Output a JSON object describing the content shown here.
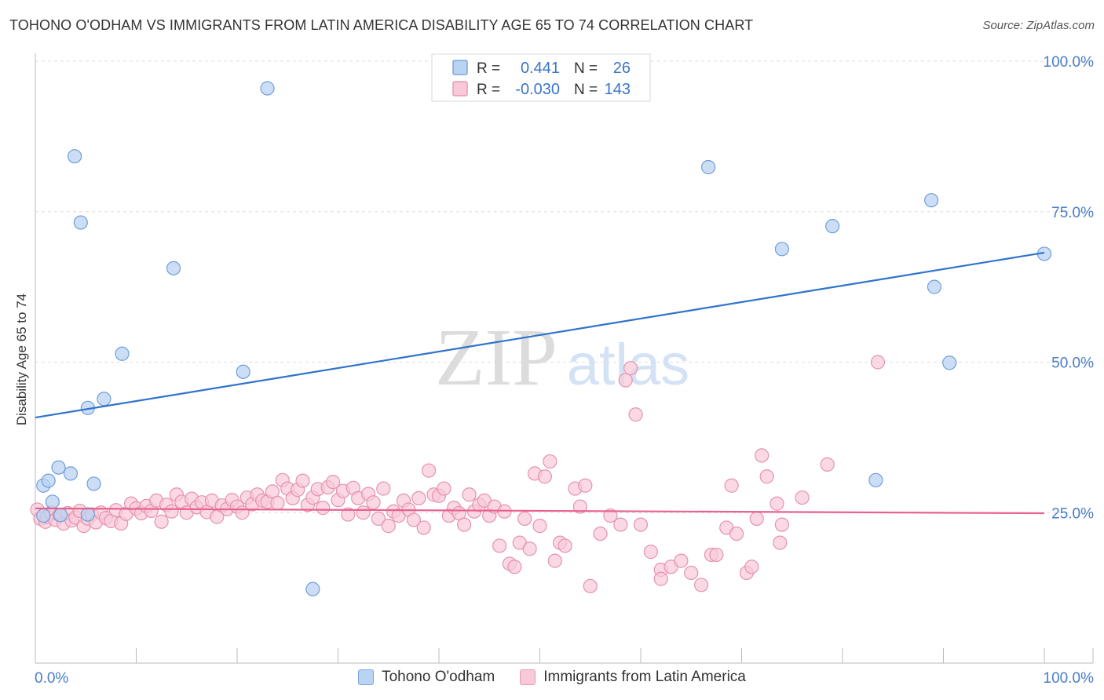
{
  "title": "TOHONO O'ODHAM VS IMMIGRANTS FROM LATIN AMERICA DISABILITY AGE 65 TO 74 CORRELATION CHART",
  "source": "Source: ZipAtlas.com",
  "watermark": {
    "zip": "ZIP",
    "atlas": "atlas"
  },
  "colors": {
    "blue_fill": "#b9d3f3",
    "blue_stroke": "#6f9fd8",
    "blue_line": "#2f73cc",
    "pink_fill": "#f8c9d8",
    "pink_stroke": "#e592b0",
    "pink_line": "#e8628f",
    "axis_label": "#4a7dc9",
    "grid": "#dddddd"
  },
  "legend_top": {
    "r_label": "R =",
    "n_label": "N =",
    "series1": {
      "r": "0.441",
      "n": "26"
    },
    "series2": {
      "r": "-0.030",
      "n": "143"
    }
  },
  "legend_bottom": [
    "Tohono O'odham",
    "Immigrants from Latin America"
  ],
  "chart_data": {
    "type": "scatter",
    "title": "TOHONO O'ODHAM VS IMMIGRANTS FROM LATIN AMERICA DISABILITY AGE 65 TO 74 CORRELATION CHART",
    "xlabel": "",
    "ylabel": "Disability Age 65 to 74",
    "xlim": [
      0,
      100
    ],
    "ylim": [
      0,
      100
    ],
    "x_tick_labels": [
      "0.0%",
      "100.0%"
    ],
    "y_tick_labels": [
      "25.0%",
      "50.0%",
      "75.0%",
      "100.0%"
    ],
    "y_ticks": [
      25,
      50,
      75,
      100
    ],
    "series": [
      {
        "name": "Tohono O'odham",
        "r": 0.441,
        "n": 26,
        "trend": {
          "x": [
            0,
            100
          ],
          "y": [
            40.8,
            68.2
          ]
        },
        "points": [
          [
            0.8,
            24.5
          ],
          [
            0.8,
            29.5
          ],
          [
            1.3,
            30.3
          ],
          [
            1.7,
            26.8
          ],
          [
            2.3,
            32.5
          ],
          [
            2.5,
            24.6
          ],
          [
            3.5,
            31.5
          ],
          [
            3.9,
            84.2
          ],
          [
            4.5,
            73.2
          ],
          [
            5.2,
            42.4
          ],
          [
            5.2,
            24.7
          ],
          [
            5.8,
            29.8
          ],
          [
            6.8,
            43.9
          ],
          [
            8.6,
            51.4
          ],
          [
            13.7,
            65.6
          ],
          [
            20.6,
            48.4
          ],
          [
            23.0,
            95.5
          ],
          [
            27.5,
            12.3
          ],
          [
            66.7,
            82.4
          ],
          [
            74.0,
            68.8
          ],
          [
            79.0,
            72.6
          ],
          [
            83.3,
            30.4
          ],
          [
            88.8,
            76.9
          ],
          [
            89.1,
            62.5
          ],
          [
            90.6,
            49.9
          ],
          [
            100.0,
            68.0
          ]
        ]
      },
      {
        "name": "Immigrants from Latin America",
        "r": -0.03,
        "n": 143,
        "trend": {
          "x": [
            0,
            100
          ],
          "y": [
            25.7,
            24.9
          ]
        },
        "points": [
          [
            0.2,
            25.5
          ],
          [
            0.5,
            24.0
          ],
          [
            1.0,
            23.5
          ],
          [
            1.2,
            24.3
          ],
          [
            1.6,
            25.0
          ],
          [
            2.0,
            23.8
          ],
          [
            2.4,
            24.6
          ],
          [
            2.8,
            23.2
          ],
          [
            3.2,
            24.9
          ],
          [
            3.6,
            23.7
          ],
          [
            4.0,
            24.2
          ],
          [
            4.4,
            25.3
          ],
          [
            4.8,
            22.8
          ],
          [
            5.2,
            24.0
          ],
          [
            5.6,
            24.7
          ],
          [
            6.0,
            23.4
          ],
          [
            6.5,
            25.0
          ],
          [
            7.0,
            24.1
          ],
          [
            7.5,
            23.6
          ],
          [
            8.0,
            25.4
          ],
          [
            8.5,
            23.2
          ],
          [
            9.0,
            24.8
          ],
          [
            9.5,
            26.5
          ],
          [
            10.0,
            25.7
          ],
          [
            10.5,
            24.9
          ],
          [
            11.0,
            26.1
          ],
          [
            11.5,
            25.3
          ],
          [
            12.0,
            27.0
          ],
          [
            12.5,
            23.5
          ],
          [
            13.0,
            26.3
          ],
          [
            13.5,
            25.2
          ],
          [
            14.0,
            28.0
          ],
          [
            14.5,
            26.8
          ],
          [
            15.0,
            25.0
          ],
          [
            15.5,
            27.3
          ],
          [
            16.0,
            25.9
          ],
          [
            16.5,
            26.7
          ],
          [
            17.0,
            25.1
          ],
          [
            17.5,
            27.0
          ],
          [
            18.0,
            24.3
          ],
          [
            18.5,
            26.2
          ],
          [
            19.0,
            25.6
          ],
          [
            19.5,
            27.1
          ],
          [
            20.0,
            26.0
          ],
          [
            20.5,
            25.0
          ],
          [
            21.0,
            27.5
          ],
          [
            21.5,
            26.4
          ],
          [
            22.0,
            28.0
          ],
          [
            22.5,
            27.0
          ],
          [
            23.0,
            26.8
          ],
          [
            23.5,
            28.5
          ],
          [
            24.0,
            26.6
          ],
          [
            24.5,
            30.4
          ],
          [
            25.0,
            29.0
          ],
          [
            25.5,
            27.4
          ],
          [
            26.0,
            28.8
          ],
          [
            26.5,
            30.3
          ],
          [
            27.0,
            26.3
          ],
          [
            27.5,
            27.5
          ],
          [
            28.0,
            28.9
          ],
          [
            28.5,
            25.8
          ],
          [
            29.0,
            29.2
          ],
          [
            29.5,
            30.1
          ],
          [
            30.0,
            27.1
          ],
          [
            30.5,
            28.6
          ],
          [
            31.0,
            24.7
          ],
          [
            31.5,
            29.1
          ],
          [
            32.0,
            27.4
          ],
          [
            32.5,
            25.0
          ],
          [
            33.0,
            28.1
          ],
          [
            33.5,
            26.7
          ],
          [
            34.0,
            24.0
          ],
          [
            34.5,
            29.0
          ],
          [
            35.0,
            22.8
          ],
          [
            35.5,
            25.2
          ],
          [
            36.0,
            24.5
          ],
          [
            36.5,
            27.0
          ],
          [
            37.0,
            25.5
          ],
          [
            37.5,
            23.8
          ],
          [
            38.0,
            27.4
          ],
          [
            38.5,
            22.5
          ],
          [
            39.0,
            32.0
          ],
          [
            39.5,
            28.0
          ],
          [
            40.0,
            27.8
          ],
          [
            40.5,
            29.0
          ],
          [
            41.0,
            24.5
          ],
          [
            41.5,
            25.8
          ],
          [
            42.0,
            24.9
          ],
          [
            42.5,
            23.0
          ],
          [
            43.0,
            28.0
          ],
          [
            43.5,
            25.2
          ],
          [
            44.0,
            26.3
          ],
          [
            44.5,
            27.0
          ],
          [
            45.0,
            24.5
          ],
          [
            45.5,
            26.0
          ],
          [
            46.0,
            19.5
          ],
          [
            46.5,
            25.2
          ],
          [
            47.0,
            16.5
          ],
          [
            47.5,
            16.0
          ],
          [
            48.0,
            20.0
          ],
          [
            48.5,
            24.0
          ],
          [
            49.0,
            19.0
          ],
          [
            49.5,
            31.5
          ],
          [
            50.0,
            22.8
          ],
          [
            50.5,
            31.0
          ],
          [
            51.0,
            33.5
          ],
          [
            51.5,
            17.0
          ],
          [
            52.0,
            20.0
          ],
          [
            52.5,
            19.5
          ],
          [
            53.5,
            29.0
          ],
          [
            54.0,
            26.0
          ],
          [
            54.5,
            29.5
          ],
          [
            55.0,
            12.8
          ],
          [
            56.0,
            21.5
          ],
          [
            57.0,
            24.5
          ],
          [
            58.0,
            23.0
          ],
          [
            58.5,
            47.0
          ],
          [
            59.0,
            49.0
          ],
          [
            59.5,
            41.3
          ],
          [
            60.0,
            23.0
          ],
          [
            61.0,
            18.5
          ],
          [
            62.0,
            15.5
          ],
          [
            62.0,
            14.0
          ],
          [
            63.0,
            16.0
          ],
          [
            64.0,
            17.0
          ],
          [
            65.0,
            15.0
          ],
          [
            66.0,
            13.0
          ],
          [
            67.0,
            18.0
          ],
          [
            67.5,
            18.0
          ],
          [
            68.5,
            22.5
          ],
          [
            69.0,
            29.5
          ],
          [
            69.5,
            21.5
          ],
          [
            70.5,
            15.0
          ],
          [
            71.0,
            16.0
          ],
          [
            71.5,
            24.0
          ],
          [
            72.0,
            34.5
          ],
          [
            72.5,
            31.0
          ],
          [
            73.5,
            26.5
          ],
          [
            73.8,
            20.0
          ],
          [
            74.0,
            23.0
          ],
          [
            76.0,
            27.5
          ],
          [
            78.5,
            33.0
          ],
          [
            83.5,
            50.0
          ]
        ]
      }
    ]
  }
}
